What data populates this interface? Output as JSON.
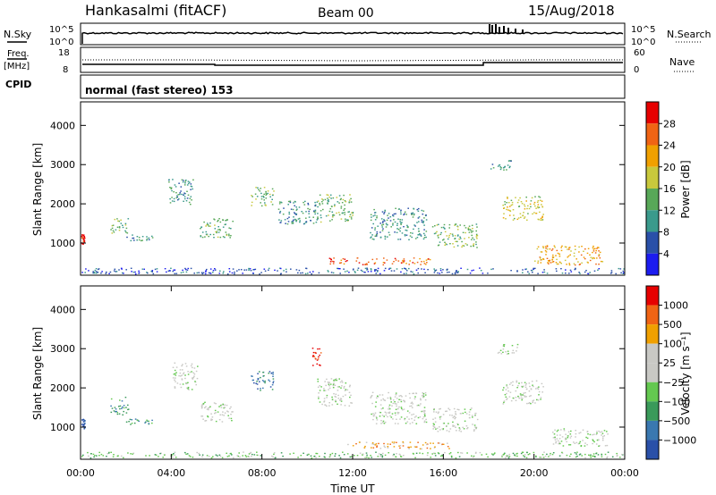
{
  "header": {
    "station": "Hankasalmi (fitACF)",
    "beam": "Beam 00",
    "date": "15/Aug/2018"
  },
  "noise_panel": {
    "left_label": "N.Sky",
    "right_label": "N.Search",
    "tick_top": "10^5",
    "tick_bottom": "10^0"
  },
  "freq_panel": {
    "left_label_1": "Freq.",
    "left_label_2": "[MHz]",
    "left_tick_top": "18",
    "left_tick_bottom": "8",
    "right_label": "Nave",
    "right_tick_top": "60",
    "right_tick_bottom": "0"
  },
  "cpid_panel": {
    "label": "CPID",
    "mode": "normal (fast stereo) 153"
  },
  "colors": {
    "power": [
      "#1c1cf0",
      "#2a50a8",
      "#3a9a8c",
      "#58a858",
      "#c8c83c",
      "#f0a000",
      "#f06414",
      "#e60000"
    ],
    "velocity": [
      "#2a50a8",
      "#3a78b0",
      "#3a9a5a",
      "#64c850",
      "#c8c8c4",
      "#c8c8c4",
      "#f0a000",
      "#f06414",
      "#e60000"
    ]
  },
  "chart_data": [
    {
      "type": "heatmap",
      "name": "power",
      "ylabel": "Slant Range [km]",
      "ylim": [
        180,
        4600
      ],
      "xlim": [
        0,
        24
      ],
      "yticks": [
        "4000",
        "3000",
        "2000",
        "1000"
      ],
      "colorbar_label": "Power [dB]",
      "colorbar_ticks": [
        "28",
        "24",
        "20",
        "16",
        "12",
        "8",
        "4"
      ],
      "clusters": [
        {
          "t": 0.1,
          "r": 1100,
          "w": 0.15,
          "h": 250,
          "c": 7
        },
        {
          "t": 1.7,
          "r": 1450,
          "w": 0.8,
          "h": 400,
          "c": 3
        },
        {
          "t": 2.6,
          "r": 1150,
          "w": 1.2,
          "h": 150,
          "c": 2
        },
        {
          "t": 4.4,
          "r": 2300,
          "w": 1.1,
          "h": 700,
          "c": 2
        },
        {
          "t": 6.0,
          "r": 1400,
          "w": 1.5,
          "h": 500,
          "c": 3
        },
        {
          "t": 8.0,
          "r": 2200,
          "w": 1.0,
          "h": 500,
          "c": 3
        },
        {
          "t": 9.6,
          "r": 1800,
          "w": 1.8,
          "h": 600,
          "c": 2
        },
        {
          "t": 11.2,
          "r": 1900,
          "w": 1.6,
          "h": 700,
          "c": 3
        },
        {
          "t": 13.2,
          "r": 550,
          "w": 4.5,
          "h": 180,
          "c": 6
        },
        {
          "t": 14.0,
          "r": 1500,
          "w": 2.5,
          "h": 800,
          "c": 2
        },
        {
          "t": 16.5,
          "r": 1200,
          "w": 2.0,
          "h": 600,
          "c": 3
        },
        {
          "t": 18.5,
          "r": 3000,
          "w": 1.0,
          "h": 250,
          "c": 2
        },
        {
          "t": 19.5,
          "r": 1900,
          "w": 1.8,
          "h": 600,
          "c": 4
        },
        {
          "t": 21.5,
          "r": 700,
          "w": 3.0,
          "h": 500,
          "c": 5
        },
        {
          "t": 12.0,
          "r": 300,
          "w": 24.0,
          "h": 150,
          "c": 1
        }
      ]
    },
    {
      "type": "heatmap",
      "name": "velocity",
      "ylabel": "Slant Range [km]",
      "xlabel": "Time UT",
      "ylim": [
        180,
        4600
      ],
      "xlim": [
        0,
        24
      ],
      "yticks": [
        "4000",
        "3000",
        "2000",
        "1000"
      ],
      "xticks": [
        "00:00",
        "04:00",
        "08:00",
        "12:00",
        "16:00",
        "20:00",
        "00:00"
      ],
      "colorbar_label": "Velocity [m s⁻¹]",
      "colorbar_ticks": [
        "1000",
        "500",
        "100",
        "25",
        "−25",
        "−100",
        "−500",
        "−1000"
      ],
      "clusters": [
        {
          "t": 0.1,
          "r": 1100,
          "w": 0.15,
          "h": 250,
          "c": 0
        },
        {
          "t": 1.7,
          "r": 1550,
          "w": 0.8,
          "h": 450,
          "c": 2
        },
        {
          "t": 2.6,
          "r": 1150,
          "w": 1.2,
          "h": 150,
          "c": 2
        },
        {
          "t": 4.6,
          "r": 2300,
          "w": 1.1,
          "h": 700,
          "c": 4
        },
        {
          "t": 6.0,
          "r": 1400,
          "w": 1.5,
          "h": 500,
          "c": 4
        },
        {
          "t": 8.0,
          "r": 2200,
          "w": 1.0,
          "h": 500,
          "c": 1
        },
        {
          "t": 10.4,
          "r": 2800,
          "w": 0.4,
          "h": 450,
          "c": 8
        },
        {
          "t": 11.2,
          "r": 1900,
          "w": 1.6,
          "h": 700,
          "c": 4
        },
        {
          "t": 14.0,
          "r": 550,
          "w": 4.5,
          "h": 180,
          "c": 6
        },
        {
          "t": 14.0,
          "r": 1500,
          "w": 2.5,
          "h": 800,
          "c": 4
        },
        {
          "t": 16.5,
          "r": 1200,
          "w": 2.0,
          "h": 600,
          "c": 4
        },
        {
          "t": 18.8,
          "r": 3000,
          "w": 1.0,
          "h": 250,
          "c": 4
        },
        {
          "t": 19.5,
          "r": 1900,
          "w": 1.8,
          "h": 600,
          "c": 4
        },
        {
          "t": 22.0,
          "r": 750,
          "w": 2.5,
          "h": 450,
          "c": 4
        },
        {
          "t": 12.0,
          "r": 300,
          "w": 24.0,
          "h": 150,
          "c": 3
        }
      ]
    }
  ]
}
